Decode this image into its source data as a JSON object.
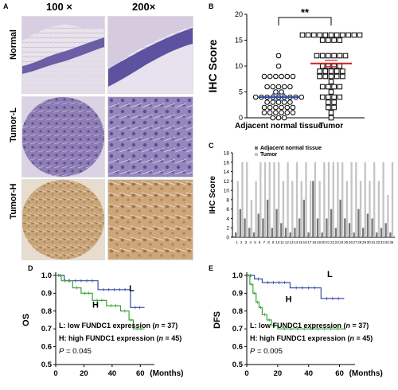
{
  "panels": {
    "A": {
      "label": "A",
      "columns": [
        "100 ×",
        "200×"
      ],
      "rows": [
        "Normal",
        "Tumor-L",
        "Tumor-H"
      ]
    },
    "B": {
      "label": "B"
    },
    "C": {
      "label": "C"
    },
    "D": {
      "label": "D"
    },
    "E": {
      "label": "E"
    }
  },
  "chart_data": [
    {
      "id": "B",
      "type": "scatter",
      "ylabel": "IHC Score",
      "ylim": [
        0,
        20
      ],
      "yticks": [
        0,
        5,
        10,
        15,
        20
      ],
      "categories": [
        "Adjacent normal tissue",
        "Tumor"
      ],
      "significance": "**",
      "series": [
        {
          "name": "Adjacent normal tissue",
          "mean": 4,
          "values": [
            0,
            0,
            0,
            1,
            1,
            1,
            1,
            1,
            1,
            2,
            2,
            2,
            2,
            2,
            2,
            3,
            3,
            3,
            3,
            3,
            4,
            4,
            4,
            4,
            4,
            4,
            4,
            4,
            4,
            5,
            5,
            6,
            6,
            6,
            6,
            6,
            8,
            8,
            8,
            8,
            8,
            8,
            10,
            12
          ]
        },
        {
          "name": "Tumor",
          "mean": 10.5,
          "values": [
            0,
            1,
            2,
            2,
            3,
            3,
            4,
            4,
            4,
            4,
            5,
            6,
            6,
            6,
            6,
            7,
            8,
            8,
            8,
            8,
            8,
            9,
            9,
            9,
            9,
            9,
            10,
            10,
            10,
            10,
            12,
            12,
            12,
            12,
            12,
            12,
            15,
            15,
            15,
            15,
            16,
            16,
            16,
            16,
            16,
            16,
            16,
            16,
            16,
            16,
            16
          ]
        }
      ]
    },
    {
      "id": "C",
      "type": "bar",
      "ylabel": "IHC Score",
      "ylim": [
        0,
        18
      ],
      "yticks": [
        0,
        2,
        4,
        6,
        8,
        10,
        12,
        14,
        16,
        18
      ],
      "categories": [
        "1",
        "2",
        "3",
        "4",
        "5",
        "6",
        "7",
        "8",
        "9",
        "10",
        "11",
        "12",
        "13",
        "14",
        "15",
        "16",
        "17",
        "18",
        "19",
        "20",
        "21",
        "22",
        "23",
        "24",
        "25",
        "26",
        "27",
        "28",
        "29",
        "30",
        "31",
        "32",
        "33",
        "34",
        "35"
      ],
      "series": [
        {
          "name": "Adjacent normal tissue",
          "color": "#777777",
          "values": [
            1,
            6,
            4,
            2,
            1,
            5,
            4,
            8,
            2,
            6,
            3,
            2,
            1,
            2,
            4,
            8,
            1,
            12,
            4,
            1,
            4,
            6,
            2,
            8,
            4,
            3,
            1,
            6,
            2,
            5,
            4,
            1,
            2,
            3,
            1
          ]
        },
        {
          "name": "Tumor",
          "color": "#c4c4c4",
          "values": [
            12,
            16,
            16,
            8,
            12,
            16,
            16,
            16,
            16,
            16,
            12,
            16,
            12,
            16,
            12,
            16,
            12,
            16,
            12,
            16,
            16,
            16,
            16,
            16,
            12,
            16,
            16,
            12,
            16,
            12,
            16,
            12,
            16,
            9,
            16
          ]
        }
      ]
    },
    {
      "id": "D",
      "type": "line",
      "ylabel": "OS",
      "xlabel": "(Months)",
      "xlim": [
        0,
        70
      ],
      "xticks": [
        0,
        20,
        40,
        60
      ],
      "ylim": [
        0.5,
        1.0
      ],
      "yticks": [
        0.5,
        0.6,
        0.7,
        0.8,
        0.9,
        1.0
      ],
      "series": [
        {
          "name": "L",
          "color": "#3a4fa8",
          "x": [
            0,
            6,
            6,
            30,
            30,
            53,
            53,
            63
          ],
          "y": [
            1.0,
            1.0,
            0.97,
            0.97,
            0.92,
            0.92,
            0.82,
            0.82
          ]
        },
        {
          "name": "H",
          "color": "#3aa33a",
          "x": [
            0,
            4,
            4,
            12,
            12,
            18,
            18,
            26,
            26,
            36,
            36,
            46,
            46,
            52,
            52,
            55,
            55,
            63
          ],
          "y": [
            1.0,
            1.0,
            0.97,
            0.97,
            0.93,
            0.93,
            0.9,
            0.9,
            0.86,
            0.86,
            0.83,
            0.83,
            0.8,
            0.8,
            0.75,
            0.75,
            0.7,
            0.7
          ]
        }
      ],
      "legend": [
        {
          "key": "L:",
          "text": " low FUNDC1 expression (",
          "n": "n",
          "tail": " = 37)"
        },
        {
          "key": "H:",
          "text": " high FUNDC1 expression (",
          "n": "n",
          "tail": " = 45)"
        }
      ],
      "pvalue": {
        "p": "P",
        "text": " = 0.045"
      }
    },
    {
      "id": "E",
      "type": "line",
      "ylabel": "DFS",
      "xlabel": "(Months)",
      "xlim": [
        0,
        70
      ],
      "xticks": [
        0,
        20,
        40,
        60
      ],
      "ylim": [
        0.5,
        1.0
      ],
      "yticks": [
        0.5,
        0.6,
        0.7,
        0.8,
        0.9,
        1.0
      ],
      "series": [
        {
          "name": "L",
          "color": "#3a4fa8",
          "x": [
            0,
            5,
            5,
            10,
            10,
            28,
            28,
            48,
            48,
            63
          ],
          "y": [
            1.0,
            1.0,
            0.98,
            0.98,
            0.96,
            0.96,
            0.93,
            0.93,
            0.87,
            0.87
          ]
        },
        {
          "name": "H",
          "color": "#3aa33a",
          "x": [
            0,
            2,
            2,
            4,
            4,
            6,
            6,
            8,
            8,
            10,
            10,
            13,
            13,
            16,
            16,
            20,
            20,
            63
          ],
          "y": [
            1.0,
            1.0,
            0.95,
            0.95,
            0.9,
            0.9,
            0.85,
            0.85,
            0.82,
            0.82,
            0.78,
            0.78,
            0.75,
            0.75,
            0.72,
            0.72,
            0.7,
            0.7
          ]
        }
      ],
      "legend": [
        {
          "key": "L:",
          "text": " low FUNDC1 expression (",
          "n": "n",
          "tail": " = 37)"
        },
        {
          "key": "H:",
          "text": " high FUNDC1 expression (",
          "n": "n",
          "tail": " = 45)"
        }
      ],
      "pvalue": {
        "p": "P",
        "text": " = 0.005"
      }
    }
  ]
}
